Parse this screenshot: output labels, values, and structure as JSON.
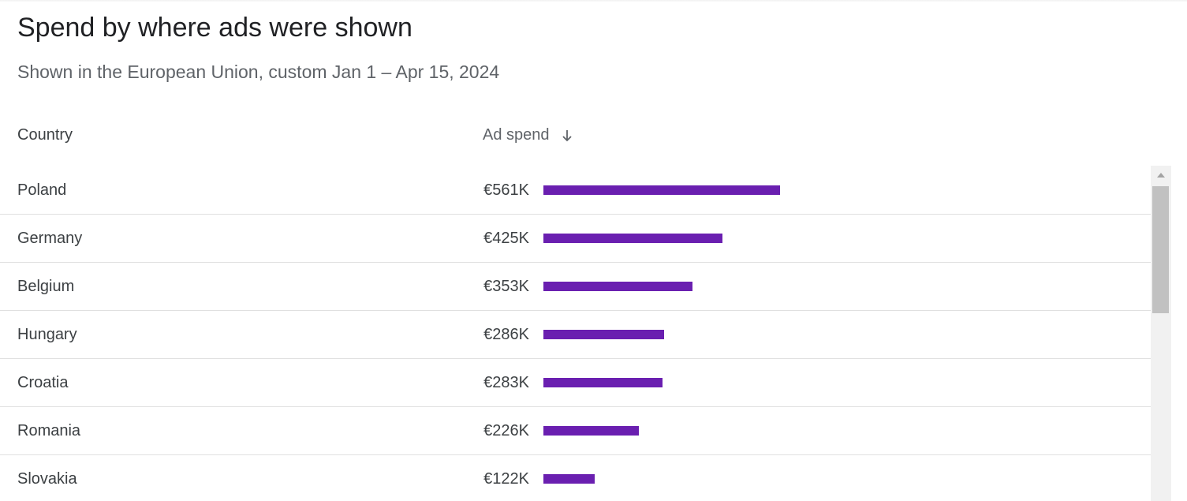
{
  "header": {
    "title": "Spend by where ads were shown",
    "subtitle": "Shown in the European Union, custom Jan 1 – Apr 15, 2024"
  },
  "table": {
    "columns": {
      "country": "Country",
      "ad_spend": "Ad spend",
      "sort_icon": "arrow-down-icon"
    },
    "bar_color": "#6a1fb0",
    "rows": [
      {
        "country": "Poland",
        "spend_label": "€561K",
        "spend": 561
      },
      {
        "country": "Germany",
        "spend_label": "€425K",
        "spend": 425
      },
      {
        "country": "Belgium",
        "spend_label": "€353K",
        "spend": 353
      },
      {
        "country": "Hungary",
        "spend_label": "€286K",
        "spend": 286
      },
      {
        "country": "Croatia",
        "spend_label": "€283K",
        "spend": 283
      },
      {
        "country": "Romania",
        "spend_label": "€226K",
        "spend": 226
      },
      {
        "country": "Slovakia",
        "spend_label": "€122K",
        "spend": 122
      }
    ]
  }
}
